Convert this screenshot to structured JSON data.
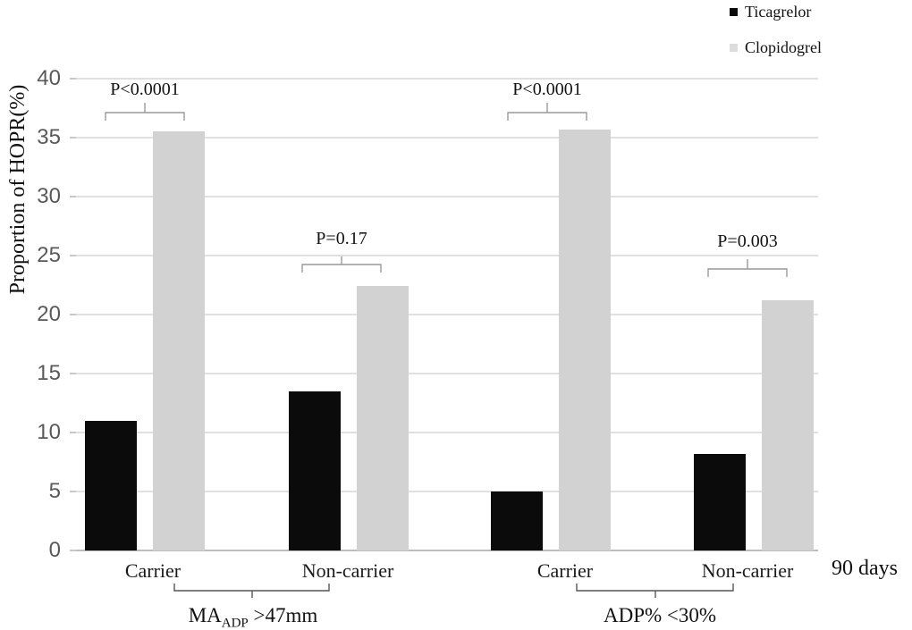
{
  "chart_data": {
    "type": "bar",
    "title": "",
    "ylabel": "Proportion of HOPR(%)",
    "xlabel": "",
    "ylim": [
      0,
      40
    ],
    "yticks": [
      0,
      5,
      10,
      15,
      20,
      25,
      30,
      35,
      40
    ],
    "grid": "horizontal",
    "categories": [
      "Carrier",
      "Non-carrier",
      "Carrier",
      "Non-carrier"
    ],
    "series": [
      {
        "name": "Ticagrelor",
        "color": "#0b0b0b",
        "values": [
          11.0,
          13.5,
          5.0,
          8.2
        ]
      },
      {
        "name": "Clopidogrel",
        "color": "#d2d2d2",
        "values": [
          35.5,
          22.4,
          35.7,
          21.2
        ]
      }
    ],
    "annotations": [
      {
        "text": "P<0.0001",
        "pair_index": 0
      },
      {
        "text": "P=0.17",
        "pair_index": 1
      },
      {
        "text": "P<0.0001",
        "pair_index": 2
      },
      {
        "text": "P=0.003",
        "pair_index": 3
      }
    ],
    "group_labels": [
      {
        "main": "MA",
        "subscript": "ADP",
        "suffix": " >47mm",
        "spans_categories": [
          "Carrier",
          "Non-carrier"
        ]
      },
      {
        "main": "ADP% <30%",
        "subscript": "",
        "suffix": "",
        "spans_categories": [
          "Carrier",
          "Non-carrier"
        ]
      }
    ],
    "legend": {
      "position": "top-right",
      "entries": [
        "Ticagrelor",
        "Clopidogrel"
      ]
    },
    "footer_right_label": "90 days",
    "colors": {
      "background": "#ffffff",
      "gridline": "#e0e0e0",
      "axis_line": "#bdbdbd",
      "tick_label": "#595959",
      "annotation_bracket": "#999999",
      "group_brace": "#555555"
    }
  }
}
